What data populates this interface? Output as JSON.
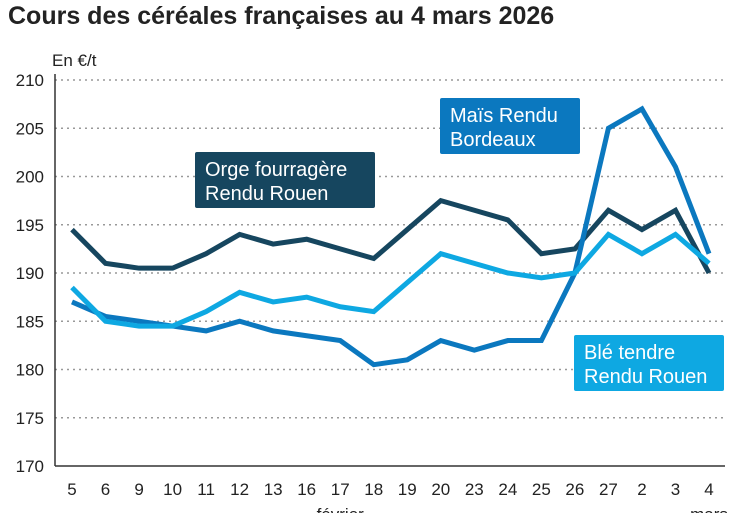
{
  "title": "Cours des céréales françaises au 4 mars 2026",
  "chart_data": {
    "type": "line",
    "title": "Cours des céréales françaises au 4 mars 2026",
    "ylabel": "En €/t",
    "ylim": [
      170,
      210
    ],
    "yticks": [
      170,
      175,
      180,
      185,
      190,
      195,
      200,
      205,
      210
    ],
    "grid": true,
    "categories": [
      "5",
      "6",
      "9",
      "10",
      "11",
      "12",
      "13",
      "16",
      "17",
      "18",
      "19",
      "20",
      "23",
      "24",
      "25",
      "26",
      "27",
      "2",
      "3",
      "4"
    ],
    "month_labels": [
      {
        "label": "février",
        "at": "17"
      },
      {
        "label": "mars",
        "at": "4"
      }
    ],
    "series": [
      {
        "name": "Orge fourragère Rendu Rouen",
        "color": "#16465f",
        "values": [
          194.5,
          191,
          190.5,
          190.5,
          192,
          194,
          193,
          193.5,
          192.5,
          191.5,
          194.5,
          197.5,
          196.5,
          195.5,
          192,
          192.5,
          196.5,
          194.5,
          196.5,
          190
        ]
      },
      {
        "name": "Maïs Rendu Bordeaux",
        "color": "#0b78bf",
        "values": [
          187,
          185.5,
          185,
          184.5,
          184,
          185,
          184,
          183.5,
          183,
          180.5,
          181,
          183,
          182,
          183,
          183,
          190,
          205,
          207,
          201,
          192
        ]
      },
      {
        "name": "Blé tendre Rendu Rouen",
        "color": "#0ea8e2",
        "values": [
          188.5,
          185,
          184.5,
          184.5,
          186,
          188,
          187,
          187.5,
          186.5,
          186,
          189,
          192,
          191,
          190,
          189.5,
          190,
          194,
          192,
          194,
          191
        ]
      }
    ],
    "labels": [
      {
        "lines": [
          "Orge fourragère",
          "Rendu Rouen"
        ],
        "series": 0
      },
      {
        "lines": [
          "Maïs Rendu",
          "Bordeaux"
        ],
        "series": 1
      },
      {
        "lines": [
          "Blé tendre",
          "Rendu Rouen"
        ],
        "series": 2
      }
    ]
  }
}
